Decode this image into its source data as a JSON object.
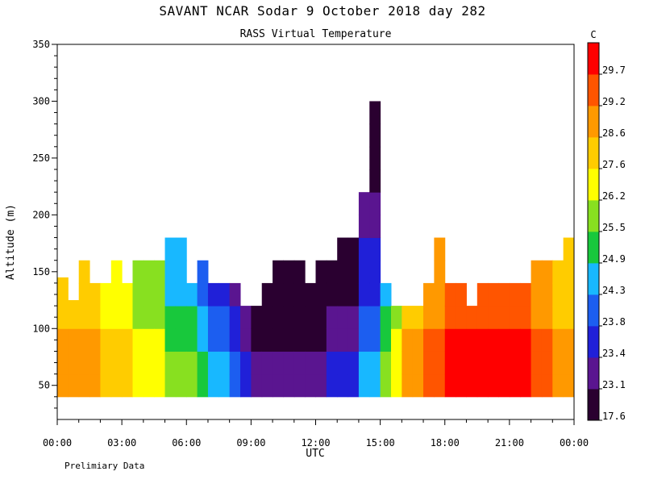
{
  "header": {
    "title": "SAVANT   NCAR Sodar    9 October 2018   day 282",
    "subtitle": "RASS Virtual Temperature"
  },
  "footer": {
    "note": "Prelimiary Data"
  },
  "colors": {
    "scale": [
      "#2a0030",
      "#5a1590",
      "#2020d8",
      "#1c5ef0",
      "#18b8ff",
      "#18c83c",
      "#88e020",
      "#ffff00",
      "#ffcc00",
      "#ff9900",
      "#ff5500",
      "#ff0000"
    ]
  },
  "chart_data": {
    "type": "heatmap",
    "title": "RASS Virtual Temperature",
    "xlabel": "UTC",
    "ylabel": "Altitude (m)",
    "xlim": [
      0,
      24
    ],
    "ylim": [
      20,
      350
    ],
    "x_ticks": [
      0,
      3,
      6,
      9,
      12,
      15,
      18,
      21,
      24
    ],
    "x_tick_labels": [
      "00:00",
      "03:00",
      "06:00",
      "09:00",
      "12:00",
      "15:00",
      "18:00",
      "21:00",
      "00:00"
    ],
    "y_ticks": [
      50,
      100,
      150,
      200,
      250,
      300,
      350
    ],
    "y_tick_labels": [
      "50",
      "100",
      "150",
      "200",
      "250",
      "300",
      "350"
    ],
    "colorbar": {
      "unit": "C",
      "boundaries": [
        "17.6",
        "23.1",
        "23.4",
        "23.8",
        "24.3",
        "24.9",
        "25.5",
        "26.2",
        "27.6",
        "28.6",
        "29.2",
        "29.7"
      ]
    },
    "grid": false,
    "x": [
      0,
      0.5,
      1,
      1.5,
      2,
      2.5,
      3,
      3.5,
      4,
      4.5,
      5,
      5.5,
      6,
      6.5,
      7,
      7.5,
      8,
      8.5,
      9,
      9.5,
      10,
      10.5,
      11,
      11.5,
      12,
      12.5,
      13,
      13.5,
      14,
      14.5,
      15,
      15.5,
      16,
      16.5,
      17,
      17.5,
      18,
      18.5,
      19,
      19.5,
      20,
      20.5,
      21,
      21.5,
      22,
      22.5,
      23,
      23.5
    ],
    "y": [
      40,
      60,
      80,
      100,
      120,
      140,
      160,
      180,
      200,
      220,
      240,
      260,
      280,
      300
    ],
    "top_altitude": [
      145,
      125,
      160,
      140,
      140,
      160,
      140,
      160,
      160,
      160,
      180,
      180,
      140,
      160,
      140,
      140,
      140,
      120,
      120,
      140,
      160,
      160,
      160,
      140,
      160,
      160,
      180,
      180,
      220,
      300,
      140,
      120,
      120,
      120,
      140,
      180,
      140,
      140,
      120,
      140,
      140,
      140,
      140,
      140,
      160,
      160,
      160,
      180
    ],
    "hour_base_class": [
      9,
      9,
      9,
      9,
      8,
      8,
      8,
      7,
      7,
      7,
      6,
      6,
      6,
      5,
      4,
      4,
      3,
      2,
      1,
      1,
      1,
      1,
      1,
      1,
      1,
      2,
      2,
      2,
      4,
      4,
      6,
      7,
      9,
      9,
      10,
      10,
      11,
      11,
      11,
      11,
      11,
      11,
      11,
      11,
      10,
      10,
      9,
      9
    ],
    "vertical_gradient": 0.8
  }
}
